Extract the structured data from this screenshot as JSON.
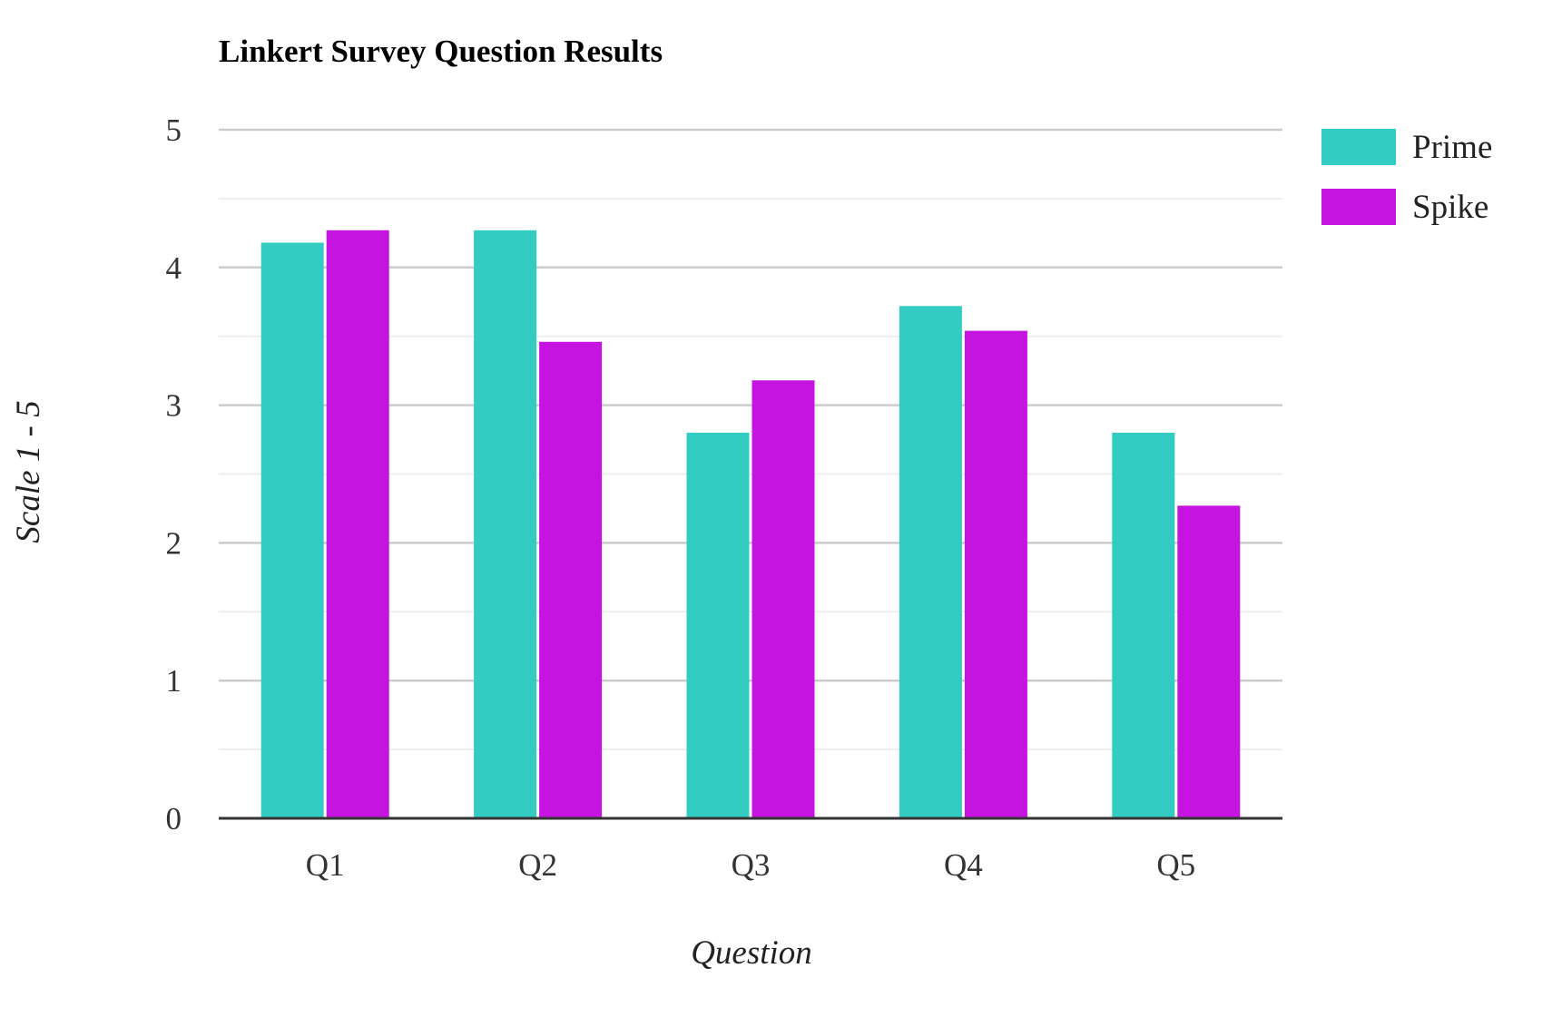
{
  "chart_data": {
    "type": "bar",
    "title": "Linkert Survey Question Results",
    "xlabel": "Question",
    "ylabel": "Scale 1 - 5",
    "categories": [
      "Q1",
      "Q2",
      "Q3",
      "Q4",
      "Q5"
    ],
    "series": [
      {
        "name": "Prime",
        "color": "#33CCC2",
        "values": [
          4.18,
          4.27,
          2.8,
          3.72,
          2.8
        ]
      },
      {
        "name": "Spike",
        "color": "#C614E0",
        "values": [
          4.27,
          3.46,
          3.18,
          3.54,
          2.27
        ]
      }
    ],
    "ylim": [
      0,
      5
    ],
    "yticks": [
      "0",
      "1",
      "2",
      "3",
      "4",
      "5"
    ],
    "grid": true,
    "legend_position": "top-right",
    "colors": {
      "major_grid": "#cccccc",
      "minor_grid": "#eeeeee",
      "baseline": "#333333"
    }
  }
}
